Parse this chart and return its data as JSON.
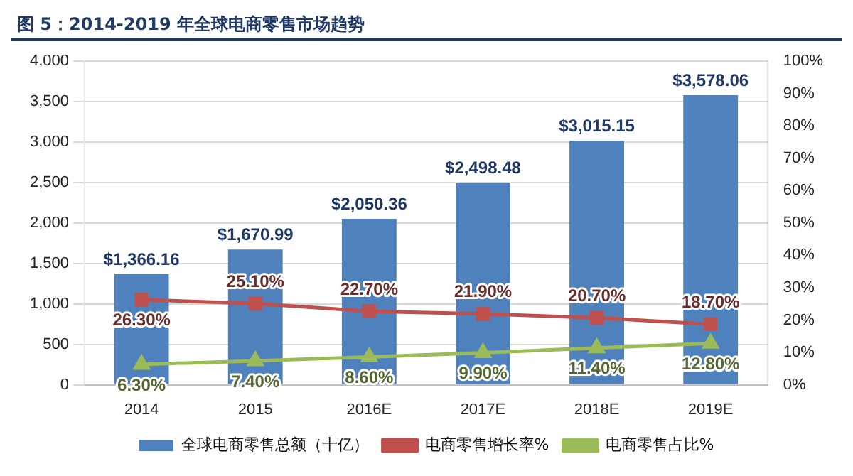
{
  "chart_data": {
    "type": "bar",
    "title": "图 5：2014-2019 年全球电商零售市场趋势",
    "categories": [
      "2014",
      "2015",
      "2016E",
      "2017E",
      "2018E",
      "2019E"
    ],
    "series": [
      {
        "name": "全球电商零售总额（十亿）",
        "color": "#4f81bd",
        "values": [
          1366.16,
          1670.99,
          2050.36,
          2498.48,
          3015.15,
          3578.06
        ],
        "value_labels": [
          "$1,366.16",
          "$1,670.99",
          "$2,050.36",
          "$2,498.48",
          "$3,015.15",
          "$3,578.06"
        ]
      },
      {
        "name": "电商零售增长率%",
        "type": "line",
        "axis": "y2",
        "marker": "square",
        "color": "#c0504d",
        "values": [
          26.3,
          25.1,
          22.7,
          21.9,
          20.7,
          18.7
        ],
        "value_labels": [
          "26.30%",
          "25.10%",
          "22.70%",
          "21.90%",
          "20.70%",
          "18.70%"
        ]
      },
      {
        "name": "电商零售占比%",
        "type": "line",
        "axis": "y2",
        "marker": "triangle",
        "color": "#9bbb59",
        "values": [
          6.3,
          7.4,
          8.6,
          9.9,
          11.4,
          12.8
        ],
        "value_labels": [
          "6.30%",
          "7.40%",
          "8.60%",
          "9.90%",
          "11.40%",
          "12.80%"
        ]
      }
    ],
    "ylim": [
      0,
      4000
    ],
    "yticks": [
      {
        "value": 0,
        "label": "0"
      },
      {
        "value": 500,
        "label": "500"
      },
      {
        "value": 1000,
        "label": "1,000"
      },
      {
        "value": 1500,
        "label": "1,500"
      },
      {
        "value": 2000,
        "label": "2,000"
      },
      {
        "value": 2500,
        "label": "2,500"
      },
      {
        "value": 3000,
        "label": "3,000"
      },
      {
        "value": 3500,
        "label": "3,500"
      },
      {
        "value": 4000,
        "label": "4,000"
      }
    ],
    "y2lim": [
      0,
      100
    ],
    "y2ticks": [
      {
        "value": 0,
        "label": "0%"
      },
      {
        "value": 10,
        "label": "10%"
      },
      {
        "value": 20,
        "label": "20%"
      },
      {
        "value": 30,
        "label": "30%"
      },
      {
        "value": 40,
        "label": "40%"
      },
      {
        "value": 50,
        "label": "50%"
      },
      {
        "value": 60,
        "label": "60%"
      },
      {
        "value": 70,
        "label": "70%"
      },
      {
        "value": 80,
        "label": "80%"
      },
      {
        "value": 90,
        "label": "90%"
      },
      {
        "value": 100,
        "label": "100%"
      }
    ],
    "grid": "y",
    "legend": "bottom"
  }
}
